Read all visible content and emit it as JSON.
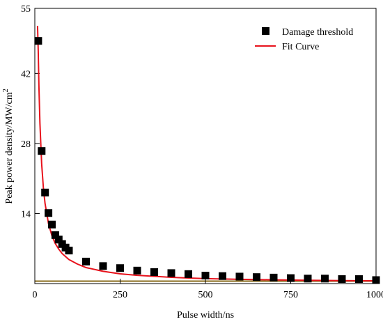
{
  "chart_data": {
    "type": "scatter",
    "xlabel": "Pulse width/ns",
    "ylabel": "Peak power density/MW/cm",
    "ylabel_superscript": "2",
    "xlim": [
      0,
      1000
    ],
    "ylim": [
      0,
      55
    ],
    "xticks": [
      0,
      250,
      500,
      750,
      1000
    ],
    "yticks": [
      14,
      28,
      42,
      55
    ],
    "grid": false,
    "legend_position": "top-right",
    "series": [
      {
        "name": "Damage threshold",
        "kind": "markers",
        "marker": "square",
        "color": "#000000",
        "x": [
          10,
          20,
          30,
          40,
          50,
          60,
          70,
          80,
          90,
          100,
          150,
          200,
          250,
          300,
          350,
          400,
          450,
          500,
          550,
          600,
          650,
          700,
          750,
          800,
          850,
          900,
          950,
          1000
        ],
        "y": [
          48.5,
          26.5,
          18.2,
          14.1,
          11.8,
          9.7,
          8.8,
          7.9,
          7.2,
          6.6,
          4.4,
          3.5,
          3.1,
          2.6,
          2.3,
          2.1,
          1.9,
          1.6,
          1.5,
          1.4,
          1.3,
          1.2,
          1.1,
          1.0,
          1.0,
          0.9,
          0.9,
          0.7
        ]
      },
      {
        "name": "Fit Curve",
        "kind": "line",
        "color": "#e8121c",
        "x": [
          8,
          10,
          12,
          15,
          20,
          25,
          30,
          40,
          50,
          60,
          70,
          80,
          100,
          125,
          150,
          200,
          250,
          300,
          400,
          500,
          600,
          700,
          800,
          900,
          1000
        ],
        "y": [
          51.5,
          46.5,
          39.5,
          32.0,
          24.0,
          19.2,
          16.0,
          12.0,
          9.6,
          8.0,
          6.9,
          6.0,
          4.8,
          3.9,
          3.2,
          2.45,
          1.95,
          1.65,
          1.25,
          1.0,
          0.85,
          0.75,
          0.67,
          0.6,
          0.55
        ]
      }
    ]
  }
}
